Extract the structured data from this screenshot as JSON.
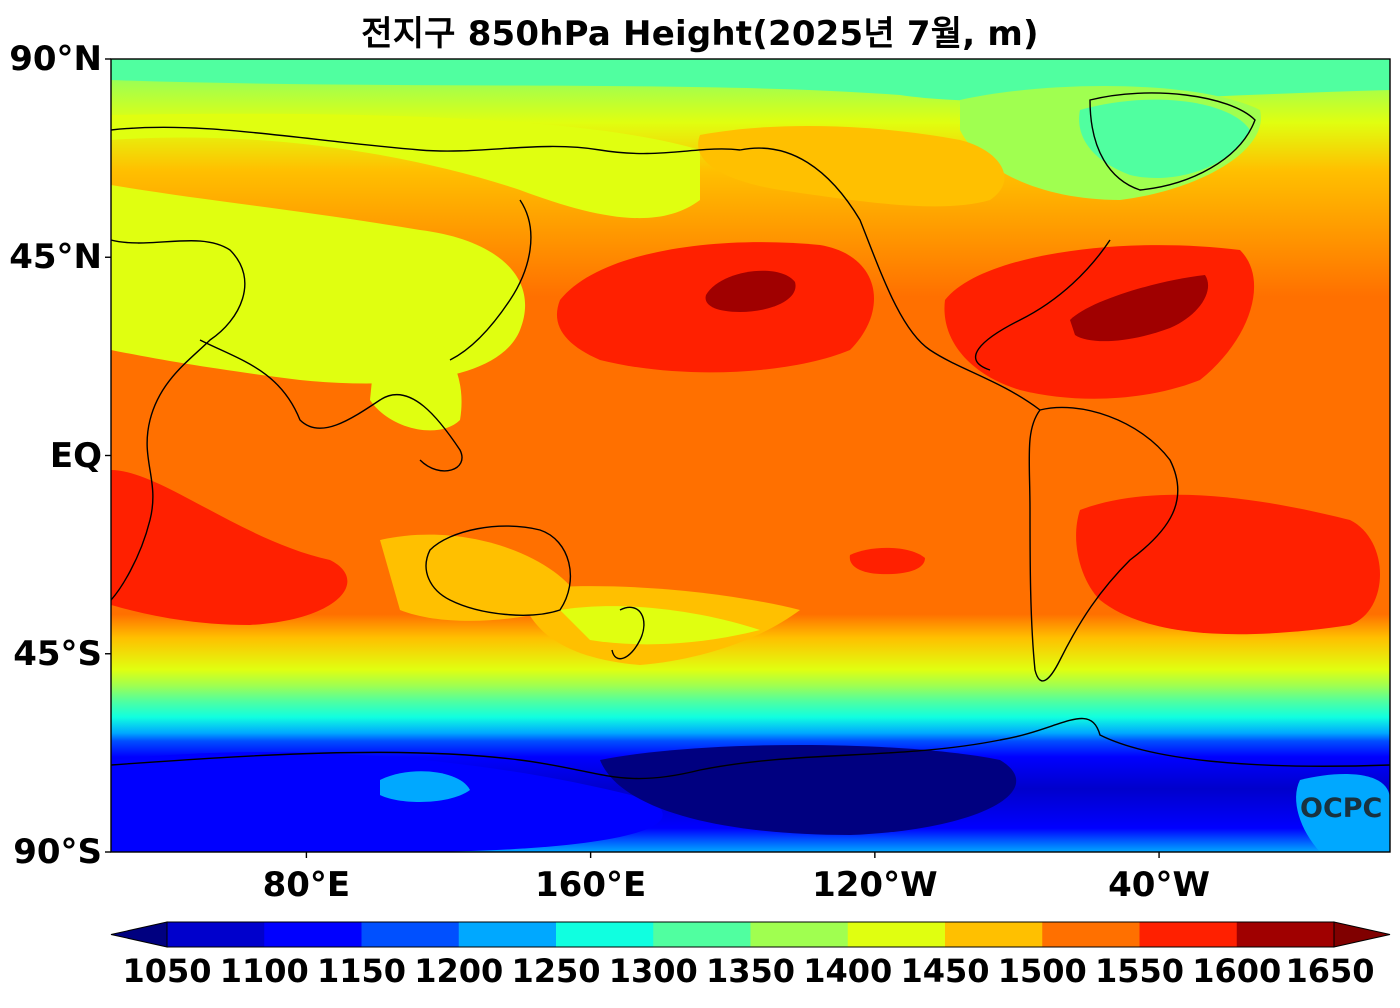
{
  "title": "전지구 850hPa Height(2025년 7월, m)",
  "latitude_labels": [
    {
      "text": "90°N",
      "lat": 90
    },
    {
      "text": "45°N",
      "lat": 45
    },
    {
      "text": "EQ",
      "lat": 0
    },
    {
      "text": "45°S",
      "lat": -45
    },
    {
      "text": "90°S",
      "lat": -90
    }
  ],
  "longitude_labels": [
    {
      "text": "80°E",
      "lon": 80
    },
    {
      "text": "160°E",
      "lon": 160
    },
    {
      "text": "120°W",
      "lon": 240
    },
    {
      "text": "40°W",
      "lon": 320
    }
  ],
  "map_extent": {
    "lon_min": 25,
    "lon_max": 385,
    "lat_min": -90,
    "lat_max": 90
  },
  "colorbar": {
    "levels": [
      "1050",
      "1100",
      "1150",
      "1200",
      "1250",
      "1300",
      "1350",
      "1400",
      "1450",
      "1500",
      "1550",
      "1600",
      "1650"
    ],
    "colors": [
      "#000080",
      "#0000cc",
      "#0000ff",
      "#0050ff",
      "#00a8ff",
      "#10ffe0",
      "#50ffa0",
      "#a0ff50",
      "#e0ff10",
      "#ffc000",
      "#ff7000",
      "#ff2000",
      "#a00000",
      "#800000"
    ],
    "extend": "both"
  },
  "watermark": "OCPC"
}
